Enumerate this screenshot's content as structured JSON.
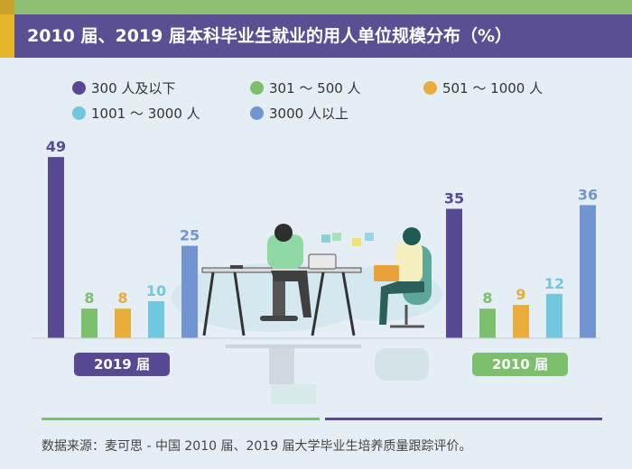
{
  "title": "2010 届、2019 届本科毕业生就业的用人单位规模分布（%）",
  "colors": {
    "300_and_below": "#574a93",
    "301_500": "#7cbf6c",
    "501_1000": "#e8ad3a",
    "1001_3000": "#6fc8dd",
    "3000_plus": "#7295d2"
  },
  "legend": [
    {
      "label": "300 人及以下",
      "color": "#574a93"
    },
    {
      "label": "301 ～ 500 人",
      "color": "#7cbf6c"
    },
    {
      "label": "501 ～ 1000 人",
      "color": "#e8ad3a"
    },
    {
      "label": "1001 ～ 3000 人",
      "color": "#6fc8dd"
    },
    {
      "label": "3000 人以上",
      "color": "#7295d2"
    }
  ],
  "chart_data": {
    "type": "bar",
    "title": "2010 届、2019 届本科毕业生就业的用人单位规模分布（%）",
    "categories": [
      "2019 届",
      "2010 届"
    ],
    "series": [
      {
        "name": "300 人及以下",
        "values": [
          49,
          35
        ]
      },
      {
        "name": "301 ～ 500 人",
        "values": [
          8,
          8
        ]
      },
      {
        "name": "501 ～ 1000 人",
        "values": [
          8,
          9
        ]
      },
      {
        "name": "1001 ～ 3000 人",
        "values": [
          10,
          12
        ]
      },
      {
        "name": "3000 人以上",
        "values": [
          25,
          36
        ]
      }
    ],
    "ylim": [
      0,
      50
    ],
    "grid": false,
    "legend_position": "top"
  },
  "group_labels": [
    "2019 届",
    "2010 届"
  ],
  "footnote": "数据来源：麦可思 - 中国 2010 届、2019 届大学毕业生培养质量跟踪评价。"
}
